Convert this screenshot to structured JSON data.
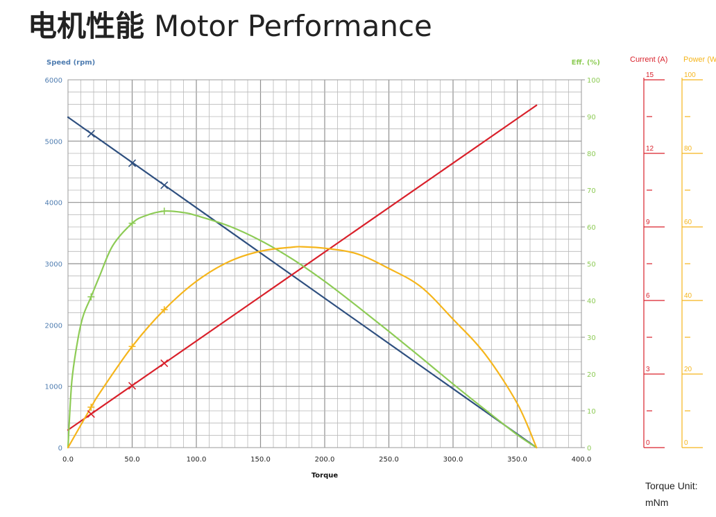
{
  "page": {
    "title_zh": "电机性能",
    "title_en": "Motor Performance"
  },
  "unit_note": {
    "label": "Torque Unit:",
    "unit": "mNm"
  },
  "colors": {
    "speed": "#2E4F7F",
    "efficiency": "#8DCB55",
    "current": "#D9202A",
    "power": "#F5B51B",
    "speed_axis_text": "#4E7CB0",
    "grid": "#a9a9a9"
  },
  "chart_data": {
    "type": "line",
    "xlabel": "Torque",
    "xlim": [
      0,
      400
    ],
    "x_ticks": [
      "0.0",
      "50.0",
      "100.0",
      "150.0",
      "200.0",
      "250.0",
      "300.0",
      "350.0",
      "400.0"
    ],
    "grid": true,
    "axes": {
      "speed": {
        "label": "Speed (rpm)",
        "range": [
          0,
          6000
        ],
        "ticks": [
          "0",
          "1000",
          "2000",
          "3000",
          "4000",
          "5000",
          "6000"
        ]
      },
      "efficiency": {
        "label": "Eff. (%)",
        "range": [
          0,
          100
        ],
        "ticks": [
          "0",
          "10",
          "20",
          "30",
          "40",
          "50",
          "60",
          "70",
          "80",
          "90",
          "100"
        ]
      },
      "current": {
        "label": "Current (A)",
        "range": [
          0,
          15
        ],
        "ticks": [
          "0",
          "3",
          "6",
          "9",
          "12",
          "15"
        ]
      },
      "power": {
        "label": "Power (W",
        "range": [
          0,
          100
        ],
        "ticks": [
          "0",
          "20",
          "40",
          "60",
          "80",
          "100"
        ]
      }
    },
    "series": [
      {
        "key": "speed",
        "axis": "speed",
        "marker": "x",
        "x": [
          0,
          365
        ],
        "y": [
          5390,
          0
        ],
        "markers": [
          [
            18,
            5120
          ],
          [
            50,
            4640
          ],
          [
            75,
            4280
          ]
        ]
      },
      {
        "key": "current",
        "axis": "current",
        "marker": "x",
        "x": [
          0,
          365
        ],
        "y": [
          0.72,
          13.96
        ],
        "markers": [
          [
            18,
            1.37
          ],
          [
            50,
            2.52
          ],
          [
            75,
            3.44
          ]
        ]
      },
      {
        "key": "efficiency",
        "axis": "efficiency",
        "marker": "+",
        "x": [
          0,
          3,
          8,
          12,
          18,
          25,
          35,
          50,
          60,
          75,
          90,
          100,
          125,
          150,
          175,
          200,
          225,
          250,
          275,
          300,
          325,
          350,
          365
        ],
        "y": [
          0,
          18,
          30,
          36,
          41,
          47,
          55,
          61,
          63,
          64.3,
          63.9,
          63.1,
          60.3,
          56.3,
          51.2,
          45.2,
          38.5,
          31.6,
          24.5,
          17.3,
          10.3,
          3.5,
          0
        ],
        "markers": [
          [
            18,
            41
          ],
          [
            50,
            61
          ],
          [
            75,
            64.3
          ]
        ]
      },
      {
        "key": "power",
        "axis": "power",
        "marker": "+",
        "x": [
          0,
          18,
          25,
          50,
          75,
          100,
          125,
          150,
          175,
          182.5,
          200,
          225,
          250,
          275,
          300,
          325,
          350,
          365
        ],
        "y": [
          0,
          11,
          15,
          27.5,
          37.5,
          45.2,
          50.5,
          53.4,
          54.5,
          54.6,
          54.2,
          52.7,
          48.7,
          43.7,
          34.9,
          25.4,
          12,
          0
        ],
        "markers": [
          [
            18,
            11
          ],
          [
            50,
            27.5
          ],
          [
            75,
            37.5
          ]
        ]
      }
    ]
  }
}
